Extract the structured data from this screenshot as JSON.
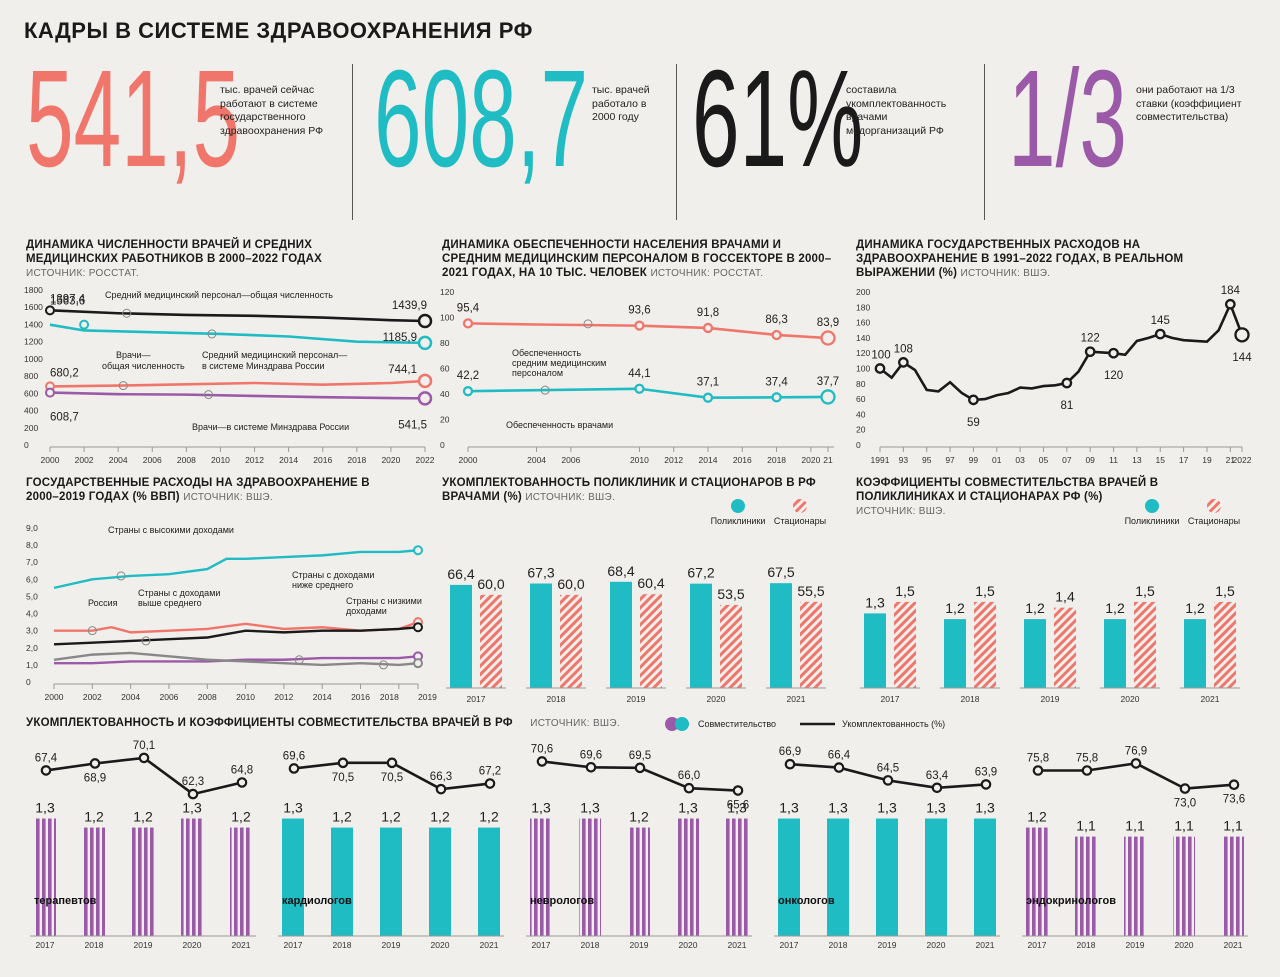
{
  "title": "КАДРЫ В СИСТЕМЕ ЗДРАВООХРАНЕНИЯ РФ",
  "colors": {
    "coral": "#f0766b",
    "teal": "#20bcc3",
    "purple": "#9b5aa7",
    "black": "#1a1a1a",
    "gray": "#888888"
  },
  "stats": [
    {
      "value": "541,5",
      "color": "#f0766b",
      "text": "тыс. врачей сейчас работают в системе государственного здравоохранения РФ"
    },
    {
      "value": "608,7",
      "color": "#20bcc3",
      "text": "тыс. врачей работало в 2000 году"
    },
    {
      "value": "61%",
      "color": "#1a1a1a",
      "text": "составила укомплектованность врачами медорганизаций РФ"
    },
    {
      "value": "1/3",
      "color": "#9b5aa7",
      "text": "они работают на 1/3 ставки (коэффициент совместительства)"
    }
  ],
  "chart_data": [
    {
      "id": "staff",
      "type": "line",
      "title": "ДИНАМИКА ЧИСЛЕННОСТИ ВРАЧЕЙ И СРЕДНИХ МЕДИЦИНСКИХ РАБОТНИКОВ В 2000–2022 ГОДАХ",
      "source": "ИСТОЧНИК: РОССТАТ.",
      "ylim": [
        0,
        1800
      ],
      "yticks": [
        "0",
        "200",
        "400",
        "600",
        "800",
        "1000",
        "1200",
        "1400",
        "1600",
        "1800"
      ],
      "xticks": [
        "2000",
        "2002",
        "2004",
        "2006",
        "2008",
        "2010",
        "2012",
        "2014",
        "2016",
        "2018",
        "2020",
        "2022"
      ],
      "series": [
        {
          "name": "Средний медицинский персонал—общая численность",
          "color": "#1a1a1a",
          "start_label": "1563,6",
          "end_label": "1439,9",
          "x": [
            2000,
            2004,
            2008,
            2012,
            2016,
            2020,
            2022
          ],
          "values": [
            1563.6,
            1530,
            1510,
            1500,
            1480,
            1450,
            1439.9
          ]
        },
        {
          "name": "Средний медицинский персонал—в системе Минздрава России",
          "color": "#20bcc3",
          "start_label": "1397,4",
          "end_label": "1185,9",
          "x": [
            2000,
            2002,
            2006,
            2010,
            2014,
            2018,
            2022
          ],
          "values": [
            1397.4,
            1330,
            1310,
            1290,
            1260,
            1200,
            1185.9
          ]
        },
        {
          "name": "Врачи—общая численность",
          "color": "#f0766b",
          "start_label": "680,2",
          "end_label": "744,1",
          "x": [
            2000,
            2004,
            2008,
            2012,
            2016,
            2020,
            2022
          ],
          "values": [
            680.2,
            690,
            705,
            720,
            700,
            720,
            744.1
          ]
        },
        {
          "name": "Врачи—в системе Минздрава России",
          "color": "#9b5aa7",
          "start_label": "608,7",
          "end_label": "541,5",
          "x": [
            2000,
            2004,
            2008,
            2012,
            2016,
            2020,
            2022
          ],
          "values": [
            608.7,
            590,
            585,
            570,
            555,
            545,
            541.5
          ]
        }
      ],
      "annotations": {
        "nurses_total": "Средний медицинский персонал—общая численность",
        "nurses_mz": "Средний медицинский персонал— в системе Минздрава России",
        "doctors_total": "Врачи— общая численность",
        "doctors_mz": "Врачи—в системе Минздрава России"
      }
    },
    {
      "id": "provision",
      "type": "line",
      "title": "ДИНАМИКА ОБЕСПЕЧЕННОСТИ НАСЕЛЕНИЯ ВРАЧАМИ И СРЕДНИМ МЕДИЦИНСКИМ ПЕРСОНАЛОМ В ГОССЕКТОРЕ В 2000–2021 ГОДАХ, НА 10 ТЫС. ЧЕЛОВЕК",
      "source": "ИСТОЧНИК: РОССТАТ.",
      "ylim": [
        0,
        120
      ],
      "yticks": [
        "0",
        "20",
        "40",
        "60",
        "80",
        "100",
        "120"
      ],
      "xticks": [
        "2000",
        "2004",
        "2006",
        "2010",
        "2012",
        "2014",
        "2016",
        "2018",
        "2020",
        "21"
      ],
      "series": [
        {
          "name": "Обеспеченность средним медицинским персоналом",
          "color": "#f0766b",
          "x": [
            2000,
            2004,
            2010,
            2014,
            2018,
            2021
          ],
          "values": [
            95.4,
            94.5,
            93.6,
            91.8,
            86.3,
            83.9
          ],
          "labels": [
            "95,4",
            "",
            "93,6",
            "91,8",
            "86,3",
            "83,9"
          ]
        },
        {
          "name": "Обеспеченность врачами",
          "color": "#20bcc3",
          "x": [
            2000,
            2004,
            2010,
            2014,
            2018,
            2021
          ],
          "values": [
            42.2,
            43,
            44.1,
            37.1,
            37.4,
            37.7
          ],
          "labels": [
            "42,2",
            "",
            "44,1",
            "37,1",
            "37,4",
            "37,7"
          ]
        }
      ],
      "annotations": {
        "nurses": "Обеспеченность средним медицинским персоналом",
        "doctors": "Обеспеченность врачами"
      }
    },
    {
      "id": "expenses",
      "type": "line",
      "title": "ДИНАМИКА ГОСУДАРСТВЕННЫХ РАСХОДОВ НА ЗДРАВООХРАНЕНИЕ В 1991–2022 ГОДАХ, В РЕАЛЬНОМ ВЫРАЖЕНИИ (%)",
      "source": "ИСТОЧНИК: ВШЭ.",
      "ylim": [
        0,
        200
      ],
      "yticks": [
        "0",
        "20",
        "40",
        "60",
        "80",
        "100",
        "120",
        "140",
        "160",
        "180",
        "200"
      ],
      "xticks": [
        "1991",
        "93",
        "95",
        "97",
        "99",
        "01",
        "03",
        "05",
        "07",
        "09",
        "11",
        "13",
        "15",
        "17",
        "19",
        "21",
        "2022"
      ],
      "x": [
        1991,
        1992,
        1993,
        1994,
        1995,
        1996,
        1997,
        1998,
        1999,
        2000,
        2001,
        2002,
        2003,
        2004,
        2005,
        2006,
        2007,
        2008,
        2009,
        2010,
        2011,
        2012,
        2013,
        2014,
        2015,
        2016,
        2017,
        2018,
        2019,
        2020,
        2021,
        2022
      ],
      "values": [
        100,
        88,
        108,
        98,
        72,
        70,
        82,
        68,
        59,
        60,
        65,
        68,
        75,
        74,
        77,
        78,
        81,
        96,
        122,
        121,
        120,
        118,
        136,
        140,
        145,
        140,
        137,
        136,
        135,
        150,
        184,
        144
      ],
      "labels": [
        {
          "x": 1991,
          "text": "100"
        },
        {
          "x": 1993,
          "text": "108"
        },
        {
          "x": 1999,
          "text": "59"
        },
        {
          "x": 2007,
          "text": "81"
        },
        {
          "x": 2009,
          "text": "122"
        },
        {
          "x": 2011,
          "text": "120"
        },
        {
          "x": 2015,
          "text": "145"
        },
        {
          "x": 2021,
          "text": "184"
        },
        {
          "x": 2022,
          "text": "144"
        }
      ]
    },
    {
      "id": "gdp",
      "type": "line",
      "title": "ГОСУДАРСТВЕННЫЕ РАСХОДЫ НА ЗДРАВООХРАНЕНИЕ В 2000–2019 ГОДАХ (% ВВП)",
      "source": "ИСТОЧНИК: ВШЭ.",
      "ylim": [
        0,
        9
      ],
      "yticks": [
        "0",
        "1,0",
        "2,0",
        "3,0",
        "4,0",
        "5,0",
        "6,0",
        "7,0",
        "8,0",
        "9,0"
      ],
      "xticks": [
        "2000",
        "2002",
        "2004",
        "2006",
        "2008",
        "2010",
        "2012",
        "2014",
        "2016",
        "2018",
        "2019"
      ],
      "series": [
        {
          "name": "Страны с высокими доходами",
          "color": "#20bcc3",
          "x": [
            2000,
            2002,
            2004,
            2006,
            2008,
            2009,
            2010,
            2012,
            2014,
            2016,
            2018,
            2019
          ],
          "values": [
            5.5,
            6.0,
            6.2,
            6.3,
            6.6,
            7.2,
            7.2,
            7.3,
            7.4,
            7.6,
            7.6,
            7.7
          ]
        },
        {
          "name": "Россия",
          "color": "#f0766b",
          "x": [
            2000,
            2002,
            2003,
            2004,
            2006,
            2008,
            2010,
            2012,
            2014,
            2016,
            2018,
            2019
          ],
          "values": [
            3.0,
            3.0,
            3.2,
            2.9,
            3.0,
            3.1,
            3.4,
            3.1,
            3.2,
            3.0,
            3.1,
            3.5
          ]
        },
        {
          "name": "Страны с доходами выше среднего",
          "color": "#1a1a1a",
          "x": [
            2000,
            2002,
            2004,
            2006,
            2008,
            2010,
            2012,
            2014,
            2016,
            2018,
            2019
          ],
          "values": [
            2.2,
            2.3,
            2.4,
            2.5,
            2.6,
            3.0,
            2.9,
            3.0,
            3.0,
            3.1,
            3.2
          ]
        },
        {
          "name": "Страны с доходами ниже среднего",
          "color": "#9b5aa7",
          "x": [
            2000,
            2002,
            2004,
            2006,
            2008,
            2010,
            2012,
            2014,
            2016,
            2018,
            2019
          ],
          "values": [
            1.1,
            1.1,
            1.2,
            1.2,
            1.2,
            1.3,
            1.3,
            1.4,
            1.4,
            1.4,
            1.5
          ]
        },
        {
          "name": "Страны с низкими доходами",
          "color": "#888888",
          "x": [
            2000,
            2002,
            2004,
            2006,
            2008,
            2010,
            2012,
            2014,
            2016,
            2018,
            2019
          ],
          "values": [
            1.3,
            1.6,
            1.7,
            1.5,
            1.3,
            1.2,
            1.1,
            1.0,
            1.1,
            1.0,
            1.1
          ]
        }
      ],
      "annotations": {
        "high": "Страны с высокими доходами",
        "russia": "Россия",
        "upper_mid": "Страны с доходами выше среднего",
        "lower_mid": "Страны с доходами ниже среднего",
        "low": "Страны с низкими доходами"
      }
    },
    {
      "id": "staffing",
      "type": "bar",
      "title": "УКОМПЛЕКТОВАННОСТЬ ПОЛИКЛИНИК И СТАЦИОНАРОВ В РФ ВРАЧАМИ (%)",
      "source": "ИСТОЧНИК: ВШЭ.",
      "categories": [
        "2017",
        "2018",
        "2019",
        "2020",
        "2021"
      ],
      "series": [
        {
          "name": "Поликлиники",
          "color": "#20bcc3",
          "values": [
            66.4,
            67.3,
            68.4,
            67.2,
            67.5
          ],
          "labels": [
            "66,4",
            "67,3",
            "68,4",
            "67,2",
            "67,5"
          ]
        },
        {
          "name": "Стационары",
          "color": "#f0766b",
          "values": [
            60.0,
            60.0,
            60.4,
            53.5,
            55.5
          ],
          "labels": [
            "60,0",
            "60,0",
            "60,4",
            "53,5",
            "55,5"
          ]
        }
      ],
      "legend": {
        "poly": "Поликлиники",
        "stat": "Стационары"
      }
    },
    {
      "id": "combination",
      "type": "bar",
      "title": "КОЭФФИЦИЕНТЫ СОВМЕСТИТЕЛЬСТВА ВРАЧЕЙ В ПОЛИКЛИНИКАХ И СТАЦИОНАРАХ РФ (%)",
      "source": "ИСТОЧНИК: ВШЭ.",
      "categories": [
        "2017",
        "2018",
        "2019",
        "2020",
        "2021"
      ],
      "series": [
        {
          "name": "Поликлиники",
          "color": "#20bcc3",
          "values": [
            1.3,
            1.2,
            1.2,
            1.2,
            1.2
          ],
          "labels": [
            "1,3",
            "1,2",
            "1,2",
            "1,2",
            "1,2"
          ]
        },
        {
          "name": "Стационары",
          "color": "#f0766b",
          "values": [
            1.5,
            1.5,
            1.4,
            1.5,
            1.5
          ],
          "labels": [
            "1,5",
            "1,5",
            "1,4",
            "1,5",
            "1,5"
          ]
        }
      ],
      "legend": {
        "poly": "Поликлиники",
        "stat": "Стационары"
      }
    },
    {
      "id": "specialties",
      "type": "bar+line",
      "title": "УКОМПЛЕКТОВАННОСТЬ И КОЭФФИЦИЕНТЫ СОВМЕСТИТЕЛЬСТВА ВРАЧЕЙ В РФ",
      "source": "ИСТОЧНИК: ВШЭ.",
      "legend": {
        "bars": "Совместительство",
        "line": "Укомплектованность (%)"
      },
      "categories": [
        "2017",
        "2018",
        "2019",
        "2020",
        "2021"
      ],
      "groups": [
        {
          "name": "терапевтов",
          "color": "#9b5aa7",
          "striped": true,
          "coef": [
            1.3,
            1.2,
            1.2,
            1.3,
            1.2
          ],
          "coef_labels": [
            "1,3",
            "1,2",
            "1,2",
            "1,3",
            "1,2"
          ],
          "staffing": [
            67.4,
            68.9,
            70.1,
            62.3,
            64.8
          ],
          "staffing_labels": [
            "67,4",
            "68,9",
            "70,1",
            "62,3",
            "64,8"
          ]
        },
        {
          "name": "кардиологов",
          "color": "#20bcc3",
          "striped": false,
          "coef": [
            1.3,
            1.2,
            1.2,
            1.2,
            1.2
          ],
          "coef_labels": [
            "1,3",
            "1,2",
            "1,2",
            "1,2",
            "1,2"
          ],
          "staffing": [
            69.6,
            70.5,
            70.5,
            66.3,
            67.2
          ],
          "staffing_labels": [
            "69,6",
            "70,5",
            "70,5",
            "66,3",
            "67,2"
          ]
        },
        {
          "name": "неврологов",
          "color": "#9b5aa7",
          "striped": true,
          "coef": [
            1.3,
            1.3,
            1.2,
            1.3,
            1.3
          ],
          "coef_labels": [
            "1,3",
            "1,3",
            "1,2",
            "1,3",
            "1,3"
          ],
          "staffing": [
            70.6,
            69.6,
            69.5,
            66.0,
            65.6
          ],
          "staffing_labels": [
            "70,6",
            "69,6",
            "69,5",
            "66,0",
            "65,6"
          ]
        },
        {
          "name": "онкологов",
          "color": "#20bcc3",
          "striped": false,
          "coef": [
            1.3,
            1.3,
            1.3,
            1.3,
            1.3
          ],
          "coef_labels": [
            "1,3",
            "1,3",
            "1,3",
            "1,3",
            "1,3"
          ],
          "staffing": [
            66.9,
            66.4,
            64.5,
            63.4,
            63.9
          ],
          "staffing_labels": [
            "66,9",
            "66,4",
            "64,5",
            "63,4",
            "63,9"
          ]
        },
        {
          "name": "эндокринологов",
          "color": "#9b5aa7",
          "striped": true,
          "coef": [
            1.2,
            1.1,
            1.1,
            1.1,
            1.1
          ],
          "coef_labels": [
            "1,2",
            "1,1",
            "1,1",
            "1,1",
            "1,1"
          ],
          "staffing": [
            75.8,
            75.8,
            76.9,
            73.0,
            73.6
          ],
          "staffing_labels": [
            "75,8",
            "75,8",
            "76,9",
            "73,0",
            "73,6"
          ]
        }
      ]
    }
  ]
}
